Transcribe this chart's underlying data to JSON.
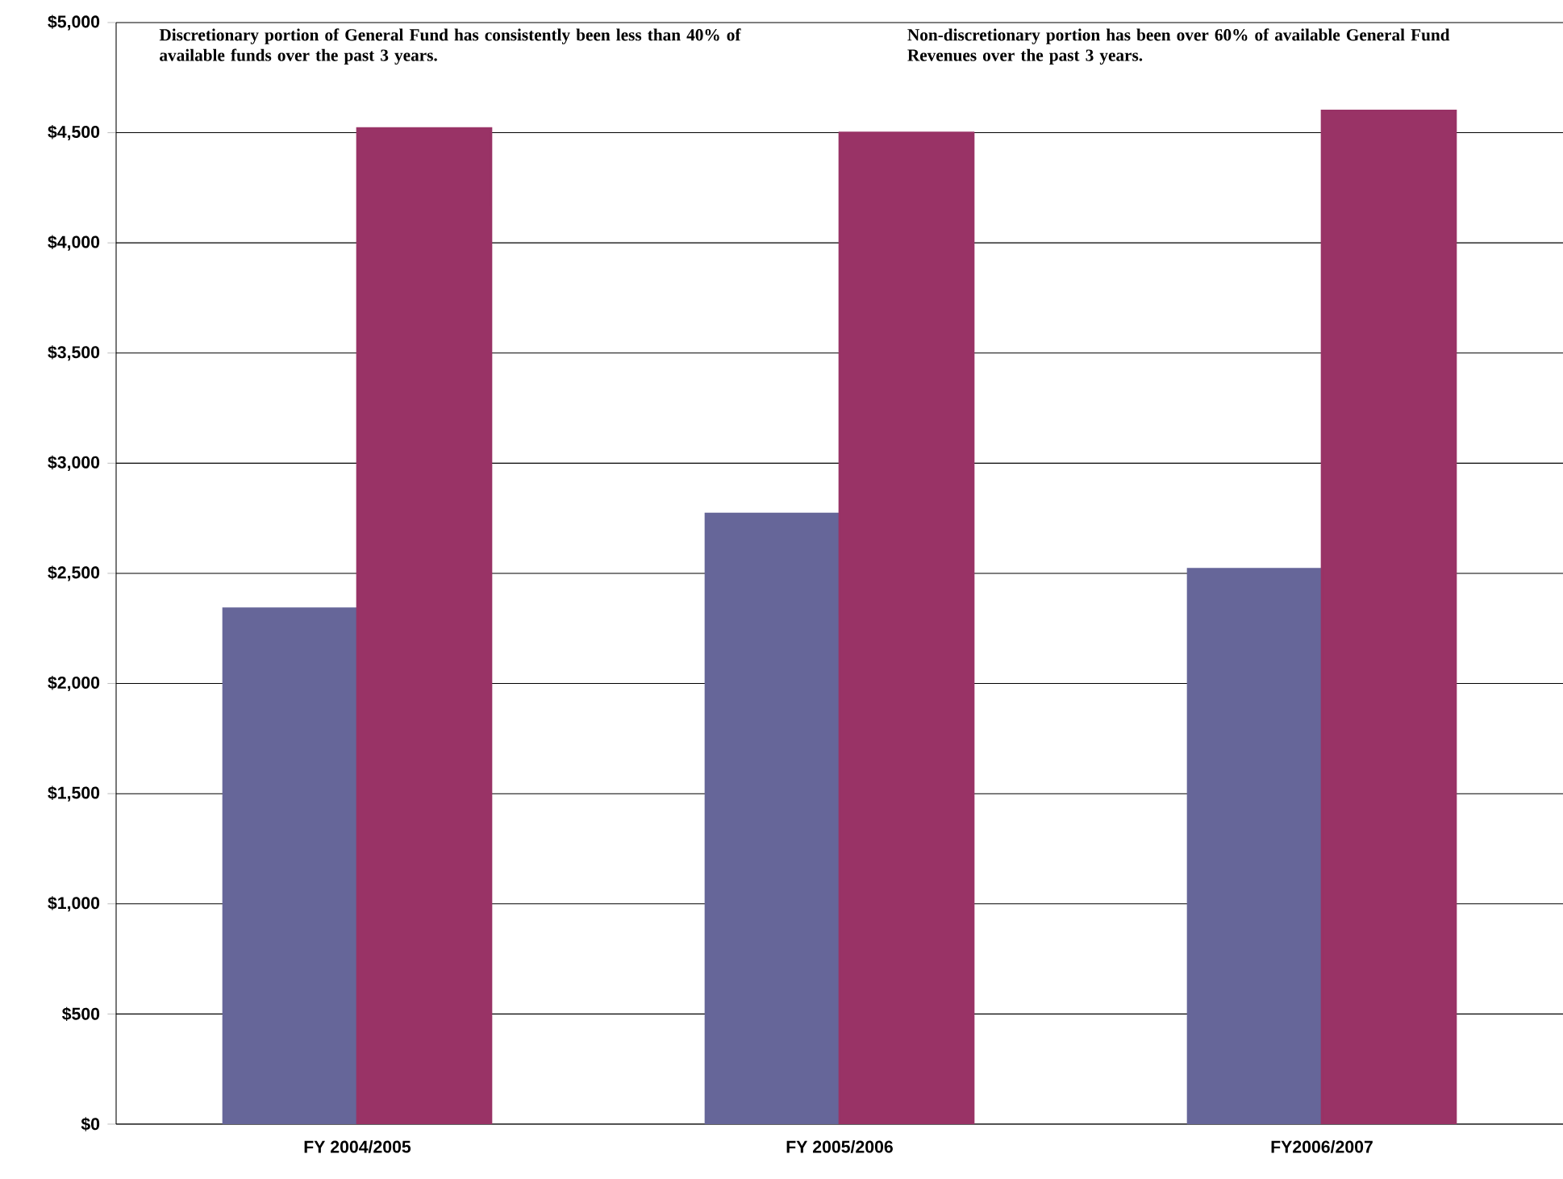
{
  "chart_data": {
    "type": "bar",
    "categories": [
      "FY 2004/2005",
      "FY 2005/2006",
      "FY2006/2007"
    ],
    "series": [
      {
        "color": "#666699",
        "values": [
          2340,
          2770,
          2520
        ]
      },
      {
        "color": "#993366",
        "values": [
          4520,
          4500,
          4600
        ]
      }
    ],
    "ylim": [
      0,
      5000
    ],
    "yticks": [
      {
        "value": 0,
        "label": "$0"
      },
      {
        "value": 500,
        "label": "$500"
      },
      {
        "value": 1000,
        "label": "$1,000"
      },
      {
        "value": 1500,
        "label": "$1,500"
      },
      {
        "value": 2000,
        "label": "$2,000"
      },
      {
        "value": 2500,
        "label": "$2,500"
      },
      {
        "value": 3000,
        "label": "$3,000"
      },
      {
        "value": 3500,
        "label": "$3,500"
      },
      {
        "value": 4000,
        "label": "$4,000"
      },
      {
        "value": 4500,
        "label": "$4,500"
      },
      {
        "value": 5000,
        "label": "$5,000"
      }
    ],
    "grid": "y",
    "annotations": [
      "Discretionary portion of General Fund has consistently been less than 40% of available funds over the past 3 years.",
      "Non-discretionary portion has been over 60% of available General Fund Revenues over the past 3 years."
    ]
  }
}
